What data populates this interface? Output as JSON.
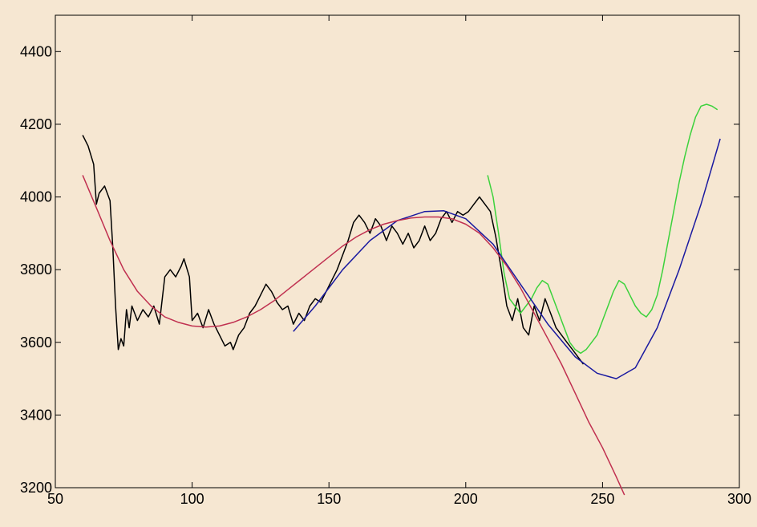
{
  "chart_data": {
    "type": "line",
    "title": "",
    "xlabel": "",
    "ylabel": "",
    "xlim": [
      50,
      300
    ],
    "ylim": [
      3200,
      4500
    ],
    "xticks": [
      50,
      100,
      150,
      200,
      250,
      300
    ],
    "yticks": [
      3200,
      3400,
      3600,
      3800,
      4000,
      4200,
      4400
    ],
    "xtick_labels": [
      "50",
      "100",
      "150",
      "200",
      "250",
      "300"
    ],
    "ytick_labels": [
      "3200",
      "3400",
      "3600",
      "3800",
      "4000",
      "4200",
      "4400"
    ],
    "grid": false,
    "legend": "none",
    "series": [
      {
        "color": "#000000",
        "points": [
          [
            60,
            4170
          ],
          [
            62,
            4140
          ],
          [
            64,
            4090
          ],
          [
            65,
            3980
          ],
          [
            66,
            4010
          ],
          [
            68,
            4030
          ],
          [
            70,
            3990
          ],
          [
            71,
            3860
          ],
          [
            72,
            3700
          ],
          [
            73,
            3580
          ],
          [
            74,
            3610
          ],
          [
            75,
            3590
          ],
          [
            76,
            3690
          ],
          [
            77,
            3640
          ],
          [
            78,
            3700
          ],
          [
            80,
            3660
          ],
          [
            82,
            3690
          ],
          [
            84,
            3670
          ],
          [
            86,
            3700
          ],
          [
            88,
            3650
          ],
          [
            90,
            3780
          ],
          [
            92,
            3800
          ],
          [
            94,
            3780
          ],
          [
            96,
            3810
          ],
          [
            97,
            3830
          ],
          [
            99,
            3780
          ],
          [
            100,
            3660
          ],
          [
            102,
            3680
          ],
          [
            104,
            3640
          ],
          [
            106,
            3690
          ],
          [
            108,
            3650
          ],
          [
            110,
            3620
          ],
          [
            112,
            3590
          ],
          [
            114,
            3600
          ],
          [
            115,
            3580
          ],
          [
            117,
            3620
          ],
          [
            119,
            3640
          ],
          [
            121,
            3680
          ],
          [
            123,
            3700
          ],
          [
            125,
            3730
          ],
          [
            127,
            3760
          ],
          [
            129,
            3740
          ],
          [
            131,
            3710
          ],
          [
            133,
            3690
          ],
          [
            135,
            3700
          ],
          [
            137,
            3650
          ],
          [
            139,
            3680
          ],
          [
            141,
            3660
          ],
          [
            143,
            3700
          ],
          [
            145,
            3720
          ],
          [
            147,
            3710
          ],
          [
            149,
            3740
          ],
          [
            151,
            3770
          ],
          [
            153,
            3800
          ],
          [
            155,
            3840
          ],
          [
            157,
            3880
          ],
          [
            159,
            3930
          ],
          [
            161,
            3950
          ],
          [
            163,
            3930
          ],
          [
            165,
            3900
          ],
          [
            167,
            3940
          ],
          [
            169,
            3920
          ],
          [
            171,
            3880
          ],
          [
            173,
            3920
          ],
          [
            175,
            3900
          ],
          [
            177,
            3870
          ],
          [
            179,
            3900
          ],
          [
            181,
            3860
          ],
          [
            183,
            3880
          ],
          [
            185,
            3920
          ],
          [
            187,
            3880
          ],
          [
            189,
            3900
          ],
          [
            191,
            3940
          ],
          [
            193,
            3960
          ],
          [
            195,
            3930
          ],
          [
            197,
            3960
          ],
          [
            199,
            3950
          ],
          [
            201,
            3960
          ],
          [
            203,
            3980
          ],
          [
            205,
            4000
          ],
          [
            207,
            3980
          ],
          [
            209,
            3960
          ],
          [
            211,
            3890
          ],
          [
            213,
            3800
          ],
          [
            215,
            3700
          ],
          [
            217,
            3660
          ],
          [
            219,
            3720
          ],
          [
            221,
            3640
          ],
          [
            223,
            3620
          ],
          [
            225,
            3700
          ],
          [
            227,
            3660
          ],
          [
            229,
            3720
          ],
          [
            231,
            3680
          ],
          [
            233,
            3640
          ],
          [
            235,
            3620
          ],
          [
            237,
            3600
          ],
          [
            239,
            3580
          ],
          [
            241,
            3560
          ],
          [
            243,
            3540
          ]
        ]
      },
      {
        "color": "#3cd23c",
        "points": [
          [
            208,
            4060
          ],
          [
            210,
            4000
          ],
          [
            212,
            3900
          ],
          [
            214,
            3790
          ],
          [
            216,
            3720
          ],
          [
            218,
            3700
          ],
          [
            220,
            3680
          ],
          [
            222,
            3700
          ],
          [
            224,
            3720
          ],
          [
            226,
            3750
          ],
          [
            228,
            3770
          ],
          [
            230,
            3760
          ],
          [
            232,
            3720
          ],
          [
            234,
            3680
          ],
          [
            236,
            3640
          ],
          [
            238,
            3600
          ],
          [
            240,
            3580
          ],
          [
            242,
            3570
          ],
          [
            244,
            3580
          ],
          [
            246,
            3600
          ],
          [
            248,
            3620
          ],
          [
            250,
            3660
          ],
          [
            252,
            3700
          ],
          [
            254,
            3740
          ],
          [
            256,
            3770
          ],
          [
            258,
            3760
          ],
          [
            260,
            3730
          ],
          [
            262,
            3700
          ],
          [
            264,
            3680
          ],
          [
            266,
            3670
          ],
          [
            268,
            3690
          ],
          [
            270,
            3730
          ],
          [
            272,
            3800
          ],
          [
            274,
            3880
          ],
          [
            276,
            3960
          ],
          [
            278,
            4040
          ],
          [
            280,
            4110
          ],
          [
            282,
            4170
          ],
          [
            284,
            4220
          ],
          [
            286,
            4250
          ],
          [
            288,
            4255
          ],
          [
            290,
            4250
          ],
          [
            292,
            4240
          ]
        ]
      },
      {
        "color": "#1a1aa0",
        "points": [
          [
            137,
            3630
          ],
          [
            145,
            3700
          ],
          [
            155,
            3800
          ],
          [
            165,
            3880
          ],
          [
            175,
            3935
          ],
          [
            185,
            3960
          ],
          [
            192,
            3962
          ],
          [
            200,
            3940
          ],
          [
            210,
            3870
          ],
          [
            220,
            3760
          ],
          [
            230,
            3650
          ],
          [
            240,
            3560
          ],
          [
            248,
            3515
          ],
          [
            255,
            3500
          ],
          [
            262,
            3530
          ],
          [
            270,
            3640
          ],
          [
            278,
            3800
          ],
          [
            286,
            3980
          ],
          [
            293,
            4160
          ]
        ]
      },
      {
        "color": "#c03050",
        "points": [
          [
            60,
            4060
          ],
          [
            65,
            3970
          ],
          [
            70,
            3880
          ],
          [
            75,
            3800
          ],
          [
            80,
            3740
          ],
          [
            85,
            3700
          ],
          [
            90,
            3670
          ],
          [
            95,
            3655
          ],
          [
            100,
            3645
          ],
          [
            105,
            3642
          ],
          [
            110,
            3645
          ],
          [
            115,
            3655
          ],
          [
            120,
            3670
          ],
          [
            125,
            3690
          ],
          [
            130,
            3715
          ],
          [
            135,
            3745
          ],
          [
            140,
            3775
          ],
          [
            145,
            3805
          ],
          [
            150,
            3835
          ],
          [
            155,
            3865
          ],
          [
            160,
            3890
          ],
          [
            165,
            3910
          ],
          [
            170,
            3925
          ],
          [
            175,
            3935
          ],
          [
            180,
            3942
          ],
          [
            185,
            3945
          ],
          [
            190,
            3945
          ],
          [
            195,
            3940
          ],
          [
            200,
            3925
          ],
          [
            205,
            3900
          ],
          [
            210,
            3860
          ],
          [
            215,
            3810
          ],
          [
            220,
            3750
          ],
          [
            225,
            3680
          ],
          [
            230,
            3610
          ],
          [
            235,
            3540
          ],
          [
            240,
            3460
          ],
          [
            245,
            3380
          ],
          [
            250,
            3310
          ],
          [
            255,
            3230
          ],
          [
            258,
            3180
          ]
        ]
      }
    ]
  }
}
